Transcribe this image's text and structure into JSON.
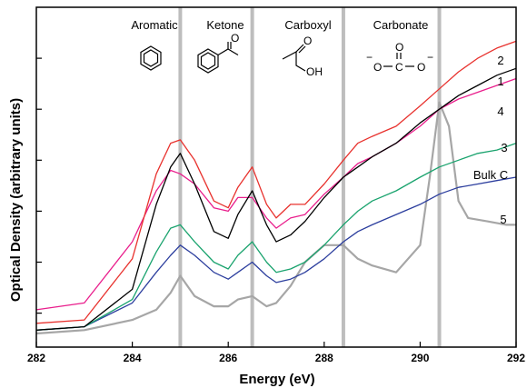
{
  "chart_data": {
    "type": "line",
    "xlabel": "Energy (eV)",
    "ylabel": "Optical Density (arbitrary units)",
    "xlim": [
      282,
      292
    ],
    "xticks": [
      282,
      284,
      286,
      288,
      290,
      292
    ],
    "ylim": [
      0,
      1
    ],
    "yticks": [
      0.1,
      0.25,
      0.4,
      0.55,
      0.7,
      0.85
    ],
    "grid": false,
    "reference_lines": [
      {
        "x": 285.0,
        "label": "Aromatic",
        "color": "#bdbdbd"
      },
      {
        "x": 286.5,
        "label": "Ketone",
        "color": "#bdbdbd"
      },
      {
        "x": 288.4,
        "label": "Carboxyl",
        "color": "#bdbdbd"
      },
      {
        "x": 290.4,
        "label": "Carbonate",
        "color": "#bdbdbd"
      }
    ],
    "structure_text": {
      "ketone_o": "O",
      "carboxyl_oh": "OH",
      "carbonate_o": "O",
      "carbonate_c": "C",
      "carbonate_minus1": "−",
      "carbonate_minus2": "−"
    },
    "series": [
      {
        "name": "2",
        "color": "#e8322e",
        "x": [
          282,
          283,
          284,
          284.5,
          284.8,
          285,
          285.3,
          285.7,
          286,
          286.2,
          286.5,
          286.8,
          287,
          287.3,
          287.6,
          288,
          288.4,
          288.7,
          289,
          289.5,
          290,
          290.4,
          290.8,
          291.2,
          291.6,
          292
        ],
        "values": [
          0.07,
          0.08,
          0.26,
          0.51,
          0.6,
          0.61,
          0.55,
          0.43,
          0.41,
          0.47,
          0.53,
          0.42,
          0.38,
          0.42,
          0.42,
          0.48,
          0.55,
          0.6,
          0.62,
          0.65,
          0.71,
          0.76,
          0.81,
          0.85,
          0.88,
          0.9
        ]
      },
      {
        "name": "1",
        "color": "#000000",
        "x": [
          282,
          283,
          284,
          284.5,
          284.8,
          285,
          285.3,
          285.7,
          286,
          286.2,
          286.5,
          286.8,
          287,
          287.3,
          287.6,
          288,
          288.4,
          288.7,
          289,
          289.5,
          290,
          290.4,
          290.8,
          291.2,
          291.6,
          292
        ],
        "values": [
          0.05,
          0.06,
          0.17,
          0.42,
          0.53,
          0.57,
          0.48,
          0.34,
          0.32,
          0.39,
          0.46,
          0.36,
          0.31,
          0.33,
          0.37,
          0.44,
          0.5,
          0.53,
          0.56,
          0.6,
          0.66,
          0.7,
          0.74,
          0.77,
          0.8,
          0.82
        ]
      },
      {
        "name": "4",
        "color": "#e91e8c",
        "x": [
          282,
          283,
          284,
          284.5,
          284.8,
          285,
          285.3,
          285.7,
          286,
          286.2,
          286.5,
          286.8,
          287,
          287.3,
          287.6,
          288,
          288.4,
          288.7,
          289,
          289.5,
          290,
          290.4,
          290.8,
          291.2,
          291.6,
          292
        ],
        "values": [
          0.11,
          0.13,
          0.31,
          0.46,
          0.52,
          0.51,
          0.48,
          0.41,
          0.4,
          0.44,
          0.44,
          0.38,
          0.35,
          0.38,
          0.39,
          0.45,
          0.5,
          0.54,
          0.56,
          0.6,
          0.65,
          0.7,
          0.73,
          0.75,
          0.77,
          0.79
        ]
      },
      {
        "name": "3",
        "color": "#1aa36e",
        "x": [
          282,
          283,
          284,
          284.5,
          284.8,
          285,
          285.3,
          285.7,
          286,
          286.2,
          286.5,
          286.8,
          287,
          287.3,
          287.6,
          288,
          288.4,
          288.7,
          289,
          289.5,
          290,
          290.4,
          290.8,
          291.2,
          291.6,
          292
        ],
        "values": [
          0.05,
          0.06,
          0.14,
          0.28,
          0.35,
          0.36,
          0.31,
          0.25,
          0.23,
          0.27,
          0.31,
          0.25,
          0.22,
          0.23,
          0.25,
          0.3,
          0.36,
          0.4,
          0.43,
          0.46,
          0.5,
          0.53,
          0.55,
          0.57,
          0.58,
          0.6
        ]
      },
      {
        "name": "Bulk C",
        "color": "#2c3e9e",
        "x": [
          282,
          283,
          284,
          284.5,
          284.8,
          285,
          285.3,
          285.7,
          286,
          286.2,
          286.5,
          286.8,
          287,
          287.3,
          287.6,
          288,
          288.4,
          288.7,
          289,
          289.5,
          290,
          290.4,
          290.8,
          291.2,
          291.6,
          292
        ],
        "values": [
          0.05,
          0.06,
          0.13,
          0.22,
          0.27,
          0.3,
          0.27,
          0.22,
          0.2,
          0.22,
          0.25,
          0.21,
          0.19,
          0.2,
          0.22,
          0.26,
          0.31,
          0.34,
          0.36,
          0.39,
          0.42,
          0.45,
          0.47,
          0.48,
          0.49,
          0.5
        ]
      },
      {
        "name": "5",
        "color": "#a6a6a6",
        "x": [
          282,
          283,
          284,
          284.5,
          284.8,
          285,
          285.3,
          285.7,
          286,
          286.2,
          286.5,
          286.8,
          287,
          287.3,
          287.6,
          288,
          288.4,
          288.7,
          289,
          289.5,
          290,
          290.2,
          290.4,
          290.6,
          290.8,
          291,
          291.4,
          291.8,
          292
        ],
        "values": [
          0.04,
          0.05,
          0.08,
          0.11,
          0.16,
          0.21,
          0.15,
          0.12,
          0.12,
          0.14,
          0.15,
          0.12,
          0.13,
          0.18,
          0.25,
          0.3,
          0.3,
          0.26,
          0.24,
          0.22,
          0.3,
          0.5,
          0.72,
          0.65,
          0.43,
          0.38,
          0.37,
          0.36,
          0.36
        ]
      }
    ]
  }
}
